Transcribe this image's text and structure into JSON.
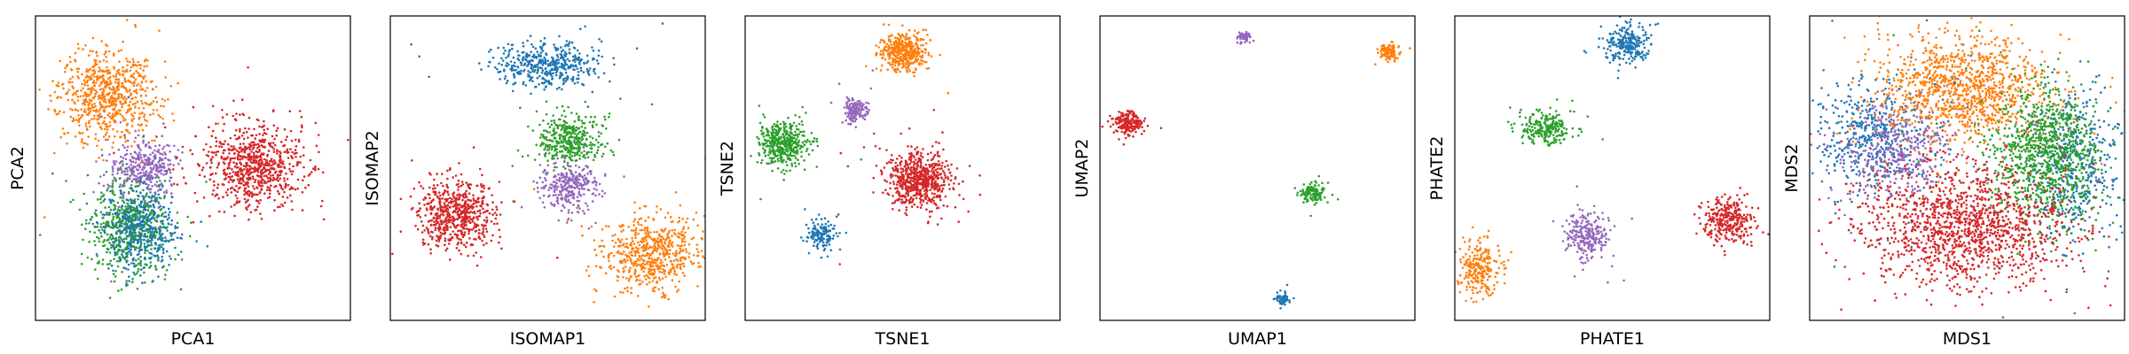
{
  "chart_data": [
    {
      "type": "scatter",
      "xlabel": "PCA1",
      "ylabel": "PCA2",
      "xlim": [
        0,
        10
      ],
      "ylim": [
        0,
        10
      ],
      "grid": false,
      "ticks": "none",
      "clusters": [
        {
          "color": "#ff7f0e",
          "center": [
            2.3,
            7.4
          ],
          "spread": [
            0.75,
            0.75
          ],
          "count": 700
        },
        {
          "color": "#9467bd",
          "center": [
            3.4,
            5.0
          ],
          "spread": [
            0.55,
            0.45
          ],
          "count": 350
        },
        {
          "color": "#2ca02c",
          "center": [
            3.0,
            3.0
          ],
          "spread": [
            0.6,
            0.75
          ],
          "count": 550
        },
        {
          "color": "#1f77b4",
          "center": [
            3.3,
            3.0
          ],
          "spread": [
            0.55,
            0.7
          ],
          "count": 450
        },
        {
          "color": "#d62728",
          "center": [
            6.9,
            5.1
          ],
          "spread": [
            0.8,
            0.65
          ],
          "count": 750
        }
      ]
    },
    {
      "type": "scatter",
      "xlabel": "ISOMAP1",
      "ylabel": "ISOMAP2",
      "xlim": [
        0,
        10
      ],
      "ylim": [
        0,
        10
      ],
      "grid": false,
      "ticks": "none",
      "clusters": [
        {
          "color": "#1f77b4",
          "center": [
            5.0,
            8.4
          ],
          "spread": [
            0.85,
            0.35
          ],
          "count": 450
        },
        {
          "color": "#2ca02c",
          "center": [
            5.7,
            5.9
          ],
          "spread": [
            0.5,
            0.45
          ],
          "count": 400
        },
        {
          "color": "#9467bd",
          "center": [
            5.7,
            4.4
          ],
          "spread": [
            0.45,
            0.4
          ],
          "count": 300
        },
        {
          "color": "#d62728",
          "center": [
            2.1,
            3.5
          ],
          "spread": [
            0.6,
            0.55
          ],
          "count": 600
        },
        {
          "color": "#ff7f0e",
          "center": [
            8.3,
            2.2
          ],
          "spread": [
            0.75,
            0.6
          ],
          "count": 600
        }
      ]
    },
    {
      "type": "scatter",
      "xlabel": "TSNE1",
      "ylabel": "TSNE2",
      "xlim": [
        0,
        10
      ],
      "ylim": [
        0,
        10
      ],
      "grid": false,
      "ticks": "none",
      "clusters": [
        {
          "color": "#ff7f0e",
          "center": [
            5.0,
            8.8
          ],
          "spread": [
            0.35,
            0.3
          ],
          "count": 400
        },
        {
          "color": "#2ca02c",
          "center": [
            1.2,
            5.8
          ],
          "spread": [
            0.38,
            0.35
          ],
          "count": 450
        },
        {
          "color": "#9467bd",
          "center": [
            3.5,
            6.9
          ],
          "spread": [
            0.18,
            0.18
          ],
          "count": 150
        },
        {
          "color": "#d62728",
          "center": [
            5.5,
            4.6
          ],
          "spread": [
            0.5,
            0.45
          ],
          "count": 650
        },
        {
          "color": "#1f77b4",
          "center": [
            2.4,
            2.8
          ],
          "spread": [
            0.22,
            0.2
          ],
          "count": 150
        }
      ]
    },
    {
      "type": "scatter",
      "xlabel": "UMAP1",
      "ylabel": "UMAP2",
      "xlim": [
        0,
        10
      ],
      "ylim": [
        0,
        10
      ],
      "grid": false,
      "ticks": "none",
      "clusters": [
        {
          "color": "#9467bd",
          "center": [
            4.6,
            9.3
          ],
          "spread": [
            0.12,
            0.1
          ],
          "count": 60
        },
        {
          "color": "#ff7f0e",
          "center": [
            9.2,
            8.8
          ],
          "spread": [
            0.16,
            0.14
          ],
          "count": 100
        },
        {
          "color": "#d62728",
          "center": [
            0.9,
            6.5
          ],
          "spread": [
            0.22,
            0.2
          ],
          "count": 200
        },
        {
          "color": "#2ca02c",
          "center": [
            6.8,
            4.2
          ],
          "spread": [
            0.18,
            0.16
          ],
          "count": 130
        },
        {
          "color": "#1f77b4",
          "center": [
            5.8,
            0.7
          ],
          "spread": [
            0.12,
            0.1
          ],
          "count": 60
        }
      ]
    },
    {
      "type": "scatter",
      "xlabel": "PHATE1",
      "ylabel": "PHATE2",
      "xlim": [
        0,
        10
      ],
      "ylim": [
        0,
        10
      ],
      "grid": false,
      "ticks": "none",
      "clusters": [
        {
          "color": "#1f77b4",
          "center": [
            5.5,
            9.1
          ],
          "spread": [
            0.35,
            0.3
          ],
          "count": 250
        },
        {
          "color": "#2ca02c",
          "center": [
            2.9,
            6.3
          ],
          "spread": [
            0.4,
            0.25
          ],
          "count": 250
        },
        {
          "color": "#9467bd",
          "center": [
            4.2,
            2.8
          ],
          "spread": [
            0.35,
            0.4
          ],
          "count": 250
        },
        {
          "color": "#d62728",
          "center": [
            8.7,
            3.3
          ],
          "spread": [
            0.4,
            0.35
          ],
          "count": 300
        },
        {
          "color": "#ff7f0e",
          "center": [
            0.8,
            1.7
          ],
          "spread": [
            0.3,
            0.45
          ],
          "count": 250
        }
      ]
    },
    {
      "type": "scatter",
      "xlabel": "MDS1",
      "ylabel": "MDS2",
      "xlim": [
        0,
        10
      ],
      "ylim": [
        0,
        10
      ],
      "grid": false,
      "ticks": "none",
      "clusters": [
        {
          "color": "#1f77b4",
          "center": [
            2.0,
            6.0
          ],
          "spread": [
            0.9,
            0.9
          ],
          "count": 500
        },
        {
          "color": "#1f77b4",
          "center": [
            8.4,
            5.0
          ],
          "spread": [
            0.7,
            1.2
          ],
          "count": 450
        },
        {
          "color": "#9467bd",
          "center": [
            2.7,
            5.6
          ],
          "spread": [
            1.0,
            0.8
          ],
          "count": 400
        },
        {
          "color": "#ff7f0e",
          "center": [
            4.9,
            7.6
          ],
          "spread": [
            1.3,
            0.85
          ],
          "count": 1100
        },
        {
          "color": "#2ca02c",
          "center": [
            7.5,
            5.5
          ],
          "spread": [
            0.85,
            1.1
          ],
          "count": 1000
        },
        {
          "color": "#d62728",
          "center": [
            4.9,
            3.1
          ],
          "spread": [
            1.65,
            0.95
          ],
          "count": 1400
        }
      ]
    }
  ]
}
